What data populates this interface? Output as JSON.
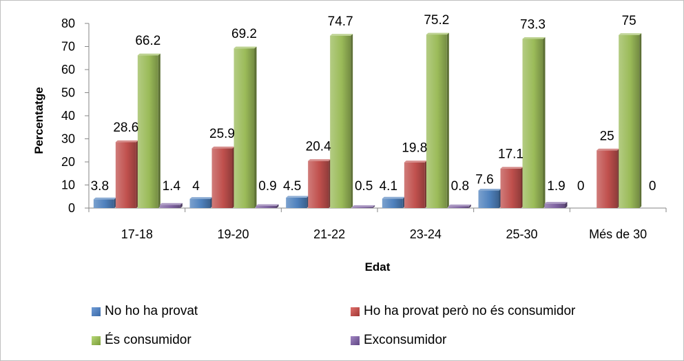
{
  "chart_data": {
    "type": "bar",
    "xlabel": "Edat",
    "ylabel": "Percentatge",
    "categories": [
      "17-18",
      "19-20",
      "21-22",
      "23-24",
      "25-30",
      "Més de 30"
    ],
    "ylim": [
      0,
      80
    ],
    "yticks": [
      0,
      10,
      20,
      30,
      40,
      50,
      60,
      70,
      80
    ],
    "grid": false,
    "legend_position": "bottom",
    "series": [
      {
        "name": "No ho ha provat",
        "color": "#4f81bd",
        "values": [
          3.8,
          4,
          4.5,
          4.1,
          7.6,
          0
        ]
      },
      {
        "name": "Ho ha provat però no és consumidor",
        "color": "#c0504d",
        "values": [
          28.6,
          25.9,
          20.4,
          19.8,
          17.1,
          25
        ]
      },
      {
        "name": "És consumidor",
        "color": "#9bbb59",
        "values": [
          66.2,
          69.2,
          74.7,
          75.2,
          73.3,
          75
        ]
      },
      {
        "name": "Exconsumidor",
        "color": "#8064a2",
        "values": [
          1.4,
          0.9,
          0.5,
          0.8,
          1.9,
          0
        ]
      }
    ],
    "data_labels": [
      [
        "3.8",
        "28.6",
        "66.2",
        "1.4"
      ],
      [
        "4",
        "25.9",
        "69.2",
        "0.9"
      ],
      [
        "4.5",
        "20.4",
        "74.7",
        "0.5"
      ],
      [
        "4.1",
        "19.8",
        "75.2",
        "0.8"
      ],
      [
        "7.6",
        "17.1",
        "73.3",
        "1.9"
      ],
      [
        "0",
        "25",
        "75",
        "0"
      ]
    ]
  }
}
